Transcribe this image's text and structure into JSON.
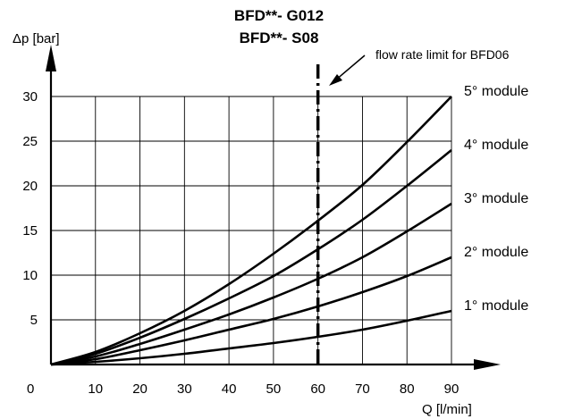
{
  "chart_data": {
    "type": "line",
    "title": [
      "BFD**- G012",
      "BFD**- S08"
    ],
    "xlabel": "Q [l/min]",
    "ylabel": "Δp [bar]",
    "xlim": [
      0,
      90
    ],
    "ylim": [
      0,
      30
    ],
    "x_ticks": [
      10,
      20,
      30,
      40,
      50,
      60,
      70,
      80,
      90
    ],
    "y_ticks": [
      5,
      10,
      15,
      20,
      25,
      30
    ],
    "origin_label": "0",
    "grid": true,
    "x": [
      0,
      10,
      20,
      30,
      40,
      50,
      60,
      70,
      80,
      90
    ],
    "series": [
      {
        "name": "1° module",
        "values": [
          0,
          0.3,
          0.7,
          1.2,
          1.8,
          2.4,
          3.1,
          3.9,
          4.9,
          6.0
        ]
      },
      {
        "name": "2° module",
        "values": [
          0,
          0.6,
          1.6,
          2.7,
          3.9,
          5.1,
          6.5,
          8.1,
          9.9,
          12.0
        ]
      },
      {
        "name": "3° module",
        "values": [
          0,
          0.9,
          2.3,
          3.9,
          5.6,
          7.5,
          9.6,
          12.0,
          14.9,
          18.0
        ]
      },
      {
        "name": "4° module",
        "values": [
          0,
          1.2,
          3.0,
          5.1,
          7.4,
          9.9,
          12.9,
          16.2,
          20.0,
          24.0
        ]
      },
      {
        "name": "5° module",
        "values": [
          0,
          1.4,
          3.5,
          6.0,
          9.0,
          12.4,
          16.1,
          20.1,
          24.9,
          30.0
        ]
      }
    ],
    "limit_line": {
      "x": 60,
      "label": "flow rate limit for BFD06"
    }
  }
}
